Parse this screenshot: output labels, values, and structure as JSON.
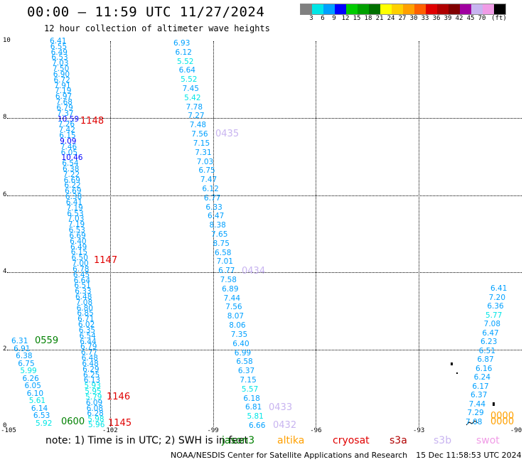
{
  "header": {
    "title": "00:00 – 11:59 UTC 11/27/2024",
    "subtitle": "12 hour collection of altimeter wave heights"
  },
  "legend": {
    "unit": "(ft)",
    "colors": [
      "#808080",
      "#00e6e6",
      "#00a0ff",
      "#0000ff",
      "#00cc00",
      "#00a000",
      "#007000",
      "#ffff00",
      "#ffd000",
      "#ffa000",
      "#ff6000",
      "#e00000",
      "#b00000",
      "#800000",
      "#a000a0",
      "#c8b4f0",
      "#f09ce6",
      "#000000"
    ],
    "labels": [
      "3",
      "6",
      "9",
      "12",
      "15",
      "18",
      "21",
      "24",
      "27",
      "30",
      "33",
      "36",
      "39",
      "42",
      "45",
      "70"
    ]
  },
  "axes": {
    "x_ticks": [
      "-105",
      "-102",
      "-99",
      "-96",
      "-93",
      "-90"
    ],
    "y_ticks": [
      "0",
      "2",
      "4",
      "6",
      "8",
      "10"
    ]
  },
  "chart_data": {
    "type": "scatter",
    "x_range": [
      -105,
      -90
    ],
    "y_range": [
      0,
      10
    ],
    "tracks": [
      {
        "name": "track1",
        "values": [
          "6.41",
          "6.55",
          "6.49",
          "6.53",
          "7.03",
          "7.50",
          "6.90",
          "6.72",
          "7.91",
          "7.19",
          "6.97",
          "7.68",
          "6.79",
          "7.37",
          "10.59",
          "7.26",
          "7.42",
          "6.15",
          "9.09",
          "7.46",
          "6.05",
          "10.46",
          "6.54",
          "6.38",
          "7.22",
          "6.69",
          "6.22",
          "6.69",
          "6.38",
          "6.41",
          "7.19",
          "6.53",
          "7.03",
          "7.19",
          "6.53",
          "6.69",
          "6.40",
          "6.49",
          "6.15",
          "6.50",
          "7.00",
          "6.78",
          "6.45",
          "6.64",
          "6.51",
          "6.33",
          "6.48",
          "7.08",
          "6.80",
          "6.85",
          "6.71",
          "6.02",
          "6.35",
          "6.54",
          "6.44",
          "6.79",
          "6.77",
          "6.48",
          "6.48",
          "6.29",
          "6.25",
          "6.13",
          "5.93",
          "5.95",
          "5.79",
          "6.09",
          "6.08",
          "6.28",
          "5.98",
          "5.96"
        ]
      },
      {
        "name": "track2",
        "values": [
          "6.93",
          "6.12",
          "5.52",
          "6.64",
          "5.52",
          "7.45",
          "5.42",
          "7.78",
          "7.27",
          "7.48",
          "7.56",
          "7.15",
          "7.31",
          "7.03",
          "6.75",
          "7.47",
          "6.12",
          "6.77",
          "6.33",
          "6.47",
          "8.38",
          "7.65",
          "8.75",
          "6.58",
          "7.01",
          "6.77",
          "7.58",
          "6.89",
          "7.44",
          "7.56",
          "8.07",
          "8.06",
          "7.35",
          "6.40",
          "6.99",
          "6.58",
          "6.37",
          "7.15",
          "5.57",
          "6.18",
          "6.81",
          "5.81",
          "6.66"
        ]
      },
      {
        "name": "track3",
        "values": [
          "6.31",
          "6.91",
          "6.38",
          "6.75",
          "5.99",
          "6.26",
          "6.05",
          "6.10",
          "5.61",
          "6.14",
          "6.53",
          "5.92"
        ]
      },
      {
        "name": "track4",
        "values": [
          "6.41",
          "7.20",
          "6.36",
          "5.77",
          "7.08",
          "6.47",
          "6.23",
          "6.51",
          "6.87",
          "6.16",
          "6.24",
          "6.17",
          "6.37",
          "7.44",
          "7.29",
          "7.08"
        ]
      }
    ],
    "pass_labels": [
      {
        "text": "1148",
        "color": "#e00000"
      },
      {
        "text": "1147",
        "color": "#e00000"
      },
      {
        "text": "1146",
        "color": "#e00000"
      },
      {
        "text": "1145",
        "color": "#e00000"
      },
      {
        "text": "0559",
        "color": "#008000"
      },
      {
        "text": "0600",
        "color": "#008000"
      },
      {
        "text": "0435",
        "color": "#c8b4f0"
      },
      {
        "text": "0434",
        "color": "#c8b4f0"
      },
      {
        "text": "0433",
        "color": "#c8b4f0"
      },
      {
        "text": "0432",
        "color": "#c8b4f0"
      },
      {
        "text": "0000",
        "color": "#ffa000"
      },
      {
        "text": "0000",
        "color": "#ffa000"
      }
    ]
  },
  "footer": {
    "note": "note:  1) Time is in UTC; 2) SWH is in feet",
    "satellites": [
      {
        "name": "jason3",
        "color": "#008000"
      },
      {
        "name": "altika",
        "color": "#ffa000"
      },
      {
        "name": "cryosat",
        "color": "#e00000"
      },
      {
        "name": "s3a",
        "color": "#b00000"
      },
      {
        "name": "s3b",
        "color": "#c8b4f0"
      },
      {
        "name": "swot",
        "color": "#f09ce6"
      }
    ],
    "credit": "NOAA/NESDIS Center for Satellite Applications and Research",
    "timestamp": "15 Dec 11:58:53 UTC 2024"
  }
}
